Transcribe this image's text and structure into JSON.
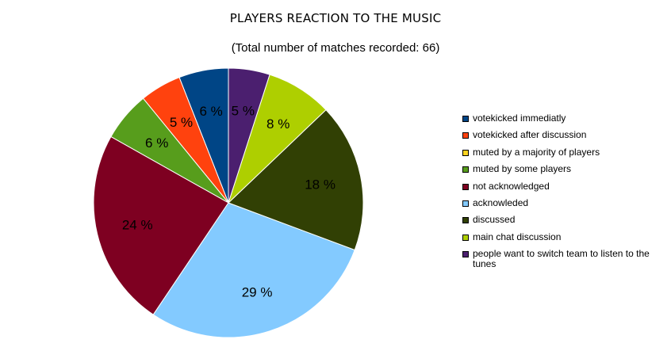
{
  "chart_data": {
    "type": "pie",
    "title": "PLAYERS REACTION TO THE MUSIC",
    "subtitle": "(Total number of matches recorded: 66)",
    "legend_position": "right",
    "slices": [
      {
        "label": "votekicked immediatly",
        "value": 6,
        "display": "6 %",
        "color": "#004586"
      },
      {
        "label": "votekicked after discussion",
        "value": 5,
        "display": "5 %",
        "color": "#ff420e"
      },
      {
        "label": "muted by a majority of players",
        "value": 0,
        "display": "",
        "color": "#ffd320"
      },
      {
        "label": "muted by some players",
        "value": 6,
        "display": "6 %",
        "color": "#579d1c"
      },
      {
        "label": "not acknowledged",
        "value": 24,
        "display": "24 %",
        "color": "#7e0021"
      },
      {
        "label": "acknowleded",
        "value": 29,
        "display": "29 %",
        "color": "#83caff"
      },
      {
        "label": "discussed",
        "value": 18,
        "display": "18 %",
        "color": "#314004"
      },
      {
        "label": "main chat discussion",
        "value": 8,
        "display": "8 %",
        "color": "#aecf00"
      },
      {
        "label": "people want to switch team to listen to the tunes",
        "value": 5,
        "display": "5 %",
        "color": "#4b1f6f"
      }
    ]
  }
}
